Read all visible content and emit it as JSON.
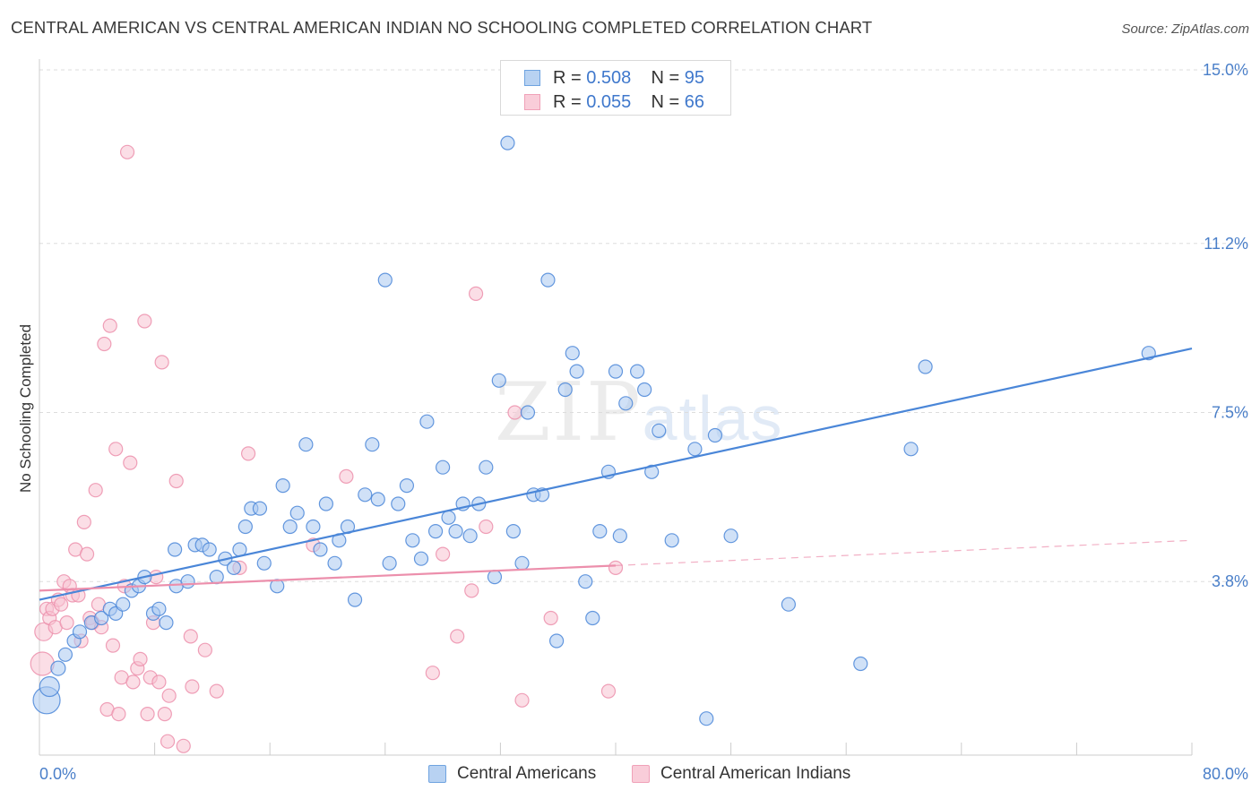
{
  "header": {
    "title": "CENTRAL AMERICAN VS CENTRAL AMERICAN INDIAN NO SCHOOLING COMPLETED CORRELATION CHART",
    "source": "Source: ZipAtlas.com"
  },
  "watermark": {
    "main": "ZIP",
    "sub": "atlas"
  },
  "legend": {
    "rows": [
      {
        "r_label": "R = ",
        "r_value": "0.508",
        "n_label": "N = ",
        "n_value": "95",
        "color": "#6fa3e0",
        "fill": "#b8d2f2"
      },
      {
        "r_label": "R = ",
        "r_value": "0.055",
        "n_label": "N = ",
        "n_value": "66",
        "color": "#f0a1b8",
        "fill": "#f9cdd9"
      }
    ]
  },
  "bottom_legend": [
    {
      "label": "Central Americans",
      "color": "#6fa3e0",
      "fill": "#b8d2f2"
    },
    {
      "label": "Central American Indians",
      "color": "#f0a1b8",
      "fill": "#f9cdd9"
    }
  ],
  "chart_data": {
    "type": "scatter",
    "title": "CENTRAL AMERICAN VS CENTRAL AMERICAN INDIAN NO SCHOOLING COMPLETED CORRELATION CHART",
    "xlabel": "",
    "ylabel": "No Schooling Completed",
    "xlim": [
      0,
      80
    ],
    "ylim": [
      0,
      15
    ],
    "x_tick_labels": [
      "0.0%",
      "80.0%"
    ],
    "y_ticks": [
      {
        "value": 3.8,
        "label": "3.8%"
      },
      {
        "value": 7.5,
        "label": "7.5%"
      },
      {
        "value": 11.2,
        "label": "11.2%"
      },
      {
        "value": 15.0,
        "label": "15.0%"
      }
    ],
    "grid": true,
    "legend_position": "top-center",
    "series": [
      {
        "name": "Central Americans",
        "color": "#4a86d8",
        "fill": "#a9c8f0",
        "trend": {
          "x0": 0,
          "y0": 3.4,
          "x1": 80,
          "y1": 8.9,
          "solid_until": 80
        },
        "points": [
          [
            0.5,
            1.2
          ],
          [
            0.7,
            1.5
          ],
          [
            1.3,
            1.9
          ],
          [
            1.8,
            2.2
          ],
          [
            2.4,
            2.5
          ],
          [
            2.8,
            2.7
          ],
          [
            3.6,
            2.9
          ],
          [
            4.3,
            3.0
          ],
          [
            4.9,
            3.2
          ],
          [
            5.3,
            3.1
          ],
          [
            5.8,
            3.3
          ],
          [
            6.4,
            3.6
          ],
          [
            6.9,
            3.7
          ],
          [
            7.3,
            3.9
          ],
          [
            7.9,
            3.1
          ],
          [
            8.3,
            3.2
          ],
          [
            8.8,
            2.9
          ],
          [
            9.4,
            4.5
          ],
          [
            9.5,
            3.7
          ],
          [
            10.3,
            3.8
          ],
          [
            10.8,
            4.6
          ],
          [
            11.3,
            4.6
          ],
          [
            11.8,
            4.5
          ],
          [
            12.3,
            3.9
          ],
          [
            12.9,
            4.3
          ],
          [
            13.5,
            4.1
          ],
          [
            13.9,
            4.5
          ],
          [
            14.3,
            5.0
          ],
          [
            14.7,
            5.4
          ],
          [
            15.3,
            5.4
          ],
          [
            15.6,
            4.2
          ],
          [
            16.5,
            3.7
          ],
          [
            16.9,
            5.9
          ],
          [
            17.4,
            5.0
          ],
          [
            17.9,
            5.3
          ],
          [
            18.5,
            6.8
          ],
          [
            19.0,
            5.0
          ],
          [
            19.5,
            4.5
          ],
          [
            19.9,
            5.5
          ],
          [
            20.5,
            4.2
          ],
          [
            20.8,
            4.7
          ],
          [
            21.4,
            5.0
          ],
          [
            21.9,
            3.4
          ],
          [
            22.6,
            5.7
          ],
          [
            23.1,
            6.8
          ],
          [
            23.5,
            5.6
          ],
          [
            24.0,
            10.4
          ],
          [
            24.3,
            4.2
          ],
          [
            24.9,
            5.5
          ],
          [
            25.5,
            5.9
          ],
          [
            25.9,
            4.7
          ],
          [
            26.5,
            4.3
          ],
          [
            26.9,
            7.3
          ],
          [
            27.5,
            4.9
          ],
          [
            28.0,
            6.3
          ],
          [
            28.4,
            5.2
          ],
          [
            28.9,
            4.9
          ],
          [
            29.4,
            5.5
          ],
          [
            29.9,
            4.8
          ],
          [
            30.5,
            5.5
          ],
          [
            31.0,
            6.3
          ],
          [
            31.6,
            3.9
          ],
          [
            31.9,
            8.2
          ],
          [
            32.5,
            13.4
          ],
          [
            32.9,
            4.9
          ],
          [
            33.5,
            4.2
          ],
          [
            33.9,
            7.5
          ],
          [
            34.3,
            5.7
          ],
          [
            34.9,
            5.7
          ],
          [
            35.3,
            10.4
          ],
          [
            35.9,
            2.5
          ],
          [
            36.5,
            8.0
          ],
          [
            37.0,
            8.8
          ],
          [
            37.3,
            8.4
          ],
          [
            37.9,
            3.8
          ],
          [
            38.4,
            3.0
          ],
          [
            38.9,
            4.9
          ],
          [
            39.5,
            6.2
          ],
          [
            40.0,
            8.4
          ],
          [
            40.3,
            4.8
          ],
          [
            40.7,
            7.7
          ],
          [
            41.5,
            8.4
          ],
          [
            42.0,
            8.0
          ],
          [
            42.5,
            6.2
          ],
          [
            43.0,
            7.1
          ],
          [
            43.9,
            4.7
          ],
          [
            45.5,
            6.7
          ],
          [
            46.3,
            0.8
          ],
          [
            46.9,
            7.0
          ],
          [
            48.0,
            4.8
          ],
          [
            52.0,
            3.3
          ],
          [
            57.0,
            2.0
          ],
          [
            60.5,
            6.7
          ],
          [
            61.5,
            8.5
          ],
          [
            77.0,
            8.8
          ]
        ],
        "sizes": {
          "0": 30,
          "1": 22,
          "2": 16
        }
      },
      {
        "name": "Central American Indians",
        "color": "#ec8fac",
        "fill": "#f7c3d2",
        "trend": {
          "x0": 0,
          "y0": 3.6,
          "x1": 80,
          "y1": 4.7,
          "solid_until": 40
        },
        "points": [
          [
            0.2,
            2.0
          ],
          [
            0.3,
            2.7
          ],
          [
            0.5,
            3.2
          ],
          [
            0.7,
            3.0
          ],
          [
            0.9,
            3.2
          ],
          [
            1.1,
            2.8
          ],
          [
            1.3,
            3.4
          ],
          [
            1.5,
            3.3
          ],
          [
            1.7,
            3.8
          ],
          [
            1.9,
            2.9
          ],
          [
            2.1,
            3.7
          ],
          [
            2.3,
            3.5
          ],
          [
            2.5,
            4.5
          ],
          [
            2.7,
            3.5
          ],
          [
            2.9,
            2.5
          ],
          [
            3.1,
            5.1
          ],
          [
            3.3,
            4.4
          ],
          [
            3.5,
            3.0
          ],
          [
            3.7,
            2.9
          ],
          [
            3.9,
            5.8
          ],
          [
            4.1,
            3.3
          ],
          [
            4.3,
            2.8
          ],
          [
            4.5,
            9.0
          ],
          [
            4.7,
            1.0
          ],
          [
            4.9,
            9.4
          ],
          [
            5.1,
            2.4
          ],
          [
            5.3,
            6.7
          ],
          [
            5.5,
            0.9
          ],
          [
            5.7,
            1.7
          ],
          [
            5.9,
            3.7
          ],
          [
            6.1,
            13.2
          ],
          [
            6.3,
            6.4
          ],
          [
            6.5,
            1.6
          ],
          [
            6.8,
            1.9
          ],
          [
            7.0,
            2.1
          ],
          [
            7.3,
            9.5
          ],
          [
            7.5,
            0.9
          ],
          [
            7.7,
            1.7
          ],
          [
            7.9,
            2.9
          ],
          [
            8.1,
            3.9
          ],
          [
            8.3,
            1.6
          ],
          [
            8.5,
            8.6
          ],
          [
            8.7,
            0.9
          ],
          [
            8.9,
            0.3
          ],
          [
            9.0,
            1.3
          ],
          [
            9.5,
            6.0
          ],
          [
            10.0,
            0.2
          ],
          [
            10.5,
            2.6
          ],
          [
            10.6,
            1.5
          ],
          [
            11.5,
            2.3
          ],
          [
            12.3,
            1.4
          ],
          [
            13.9,
            4.1
          ],
          [
            14.5,
            6.6
          ],
          [
            19.0,
            4.6
          ],
          [
            21.3,
            6.1
          ],
          [
            27.3,
            1.8
          ],
          [
            28.0,
            4.4
          ],
          [
            29.0,
            2.6
          ],
          [
            30.0,
            3.6
          ],
          [
            30.3,
            10.1
          ],
          [
            31.0,
            5.0
          ],
          [
            33.0,
            7.5
          ],
          [
            33.5,
            1.2
          ],
          [
            35.5,
            3.0
          ],
          [
            39.5,
            1.4
          ],
          [
            40.0,
            4.1
          ]
        ],
        "sizes": {
          "0": 26,
          "1": 20
        }
      }
    ]
  }
}
